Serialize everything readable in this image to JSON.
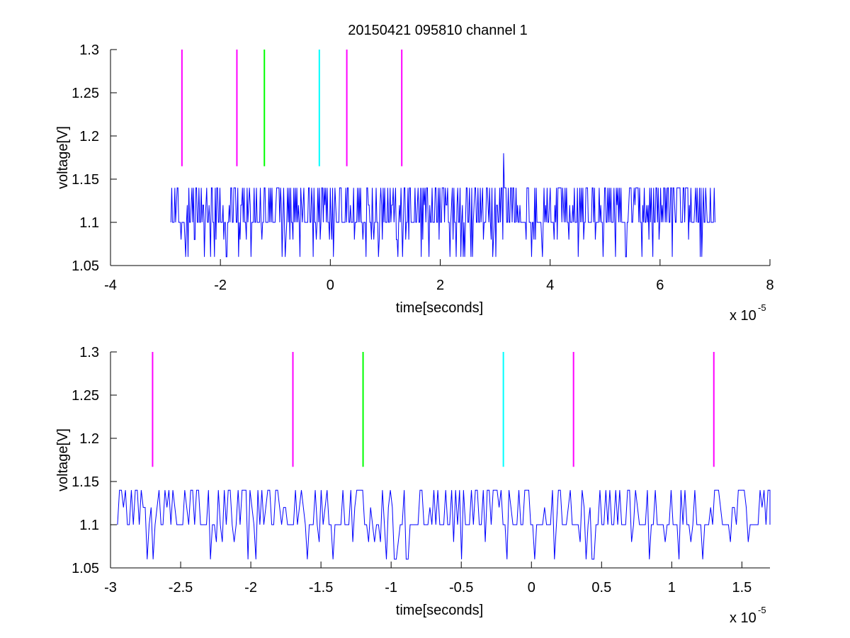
{
  "figure_title": "20150421 095810 channel 1",
  "colors": {
    "signal": "#0000ff",
    "magenta": "#ff00ff",
    "green": "#00ff00",
    "cyan": "#00ffff",
    "axes": "#000000",
    "background": "#ffffff"
  },
  "chart_data": [
    {
      "type": "line",
      "title": "20150421 095810 channel 1",
      "xlabel": "time[seconds]",
      "ylabel": "voltage[V]",
      "x_multiplier_label": "x 10",
      "x_multiplier_exponent": "-5",
      "xlim": [
        -4,
        8
      ],
      "ylim": [
        1.05,
        1.3
      ],
      "xticks": [
        -4,
        -2,
        0,
        2,
        4,
        6,
        8
      ],
      "xtick_labels": [
        "-4",
        "-2",
        "0",
        "2",
        "4",
        "6",
        "8"
      ],
      "yticks": [
        1.05,
        1.1,
        1.15,
        1.2,
        1.25,
        1.3
      ],
      "ytick_labels": [
        "1.05",
        "1.1",
        "1.15",
        "1.2",
        "1.25",
        "1.3"
      ],
      "grid": false,
      "signal": {
        "x_start": -2.9,
        "x_end": 7.0,
        "n": 700,
        "seed": 7,
        "baseline": 1.1,
        "high": 1.14,
        "low": 1.06,
        "mid_high": 1.12,
        "mid_low": 1.08,
        "spike_x": 3.15,
        "spike_y": 1.18
      },
      "markers": [
        {
          "x": -2.7,
          "y0": 1.165,
          "y1": 1.3,
          "color": "magenta"
        },
        {
          "x": -1.7,
          "y0": 1.165,
          "y1": 1.3,
          "color": "magenta"
        },
        {
          "x": -1.2,
          "y0": 1.165,
          "y1": 1.3,
          "color": "green"
        },
        {
          "x": -0.2,
          "y0": 1.165,
          "y1": 1.3,
          "color": "cyan"
        },
        {
          "x": 0.3,
          "y0": 1.165,
          "y1": 1.3,
          "color": "magenta"
        },
        {
          "x": 1.3,
          "y0": 1.165,
          "y1": 1.3,
          "color": "magenta"
        }
      ]
    },
    {
      "type": "line",
      "title": "",
      "xlabel": "time[seconds]",
      "ylabel": "voltage[V]",
      "x_multiplier_label": "x 10",
      "x_multiplier_exponent": "-5",
      "xlim": [
        -3.0,
        1.7
      ],
      "ylim": [
        1.05,
        1.3
      ],
      "xticks": [
        -3,
        -2.5,
        -2,
        -1.5,
        -1,
        -0.5,
        0,
        0.5,
        1,
        1.5
      ],
      "xtick_labels": [
        "-3",
        "-2.5",
        "-2",
        "-1.5",
        "-1",
        "-0.5",
        "0",
        "0.5",
        "1",
        "1.5"
      ],
      "yticks": [
        1.05,
        1.1,
        1.15,
        1.2,
        1.25,
        1.3
      ],
      "ytick_labels": [
        "1.05",
        "1.1",
        "1.15",
        "1.2",
        "1.25",
        "1.3"
      ],
      "grid": false,
      "signal": {
        "x_start": -2.95,
        "x_end": 1.7,
        "n": 330,
        "seed": 11,
        "baseline": 1.1,
        "high": 1.14,
        "low": 1.06,
        "mid_high": 1.12,
        "mid_low": 1.08
      },
      "markers": [
        {
          "x": -2.7,
          "y0": 1.167,
          "y1": 1.3,
          "color": "magenta"
        },
        {
          "x": -1.7,
          "y0": 1.167,
          "y1": 1.3,
          "color": "magenta"
        },
        {
          "x": -1.2,
          "y0": 1.167,
          "y1": 1.3,
          "color": "green"
        },
        {
          "x": -0.2,
          "y0": 1.167,
          "y1": 1.3,
          "color": "cyan"
        },
        {
          "x": 0.3,
          "y0": 1.167,
          "y1": 1.3,
          "color": "magenta"
        },
        {
          "x": 1.3,
          "y0": 1.167,
          "y1": 1.3,
          "color": "magenta"
        }
      ]
    }
  ]
}
